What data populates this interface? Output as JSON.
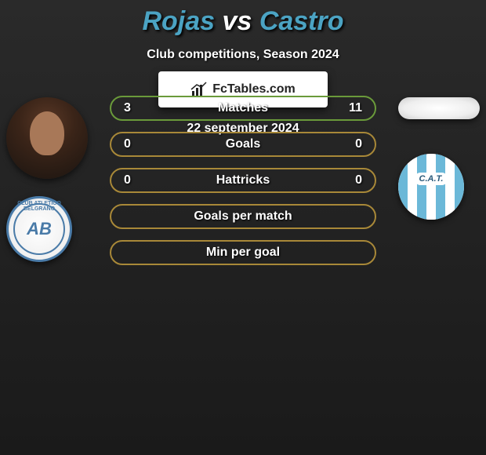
{
  "header": {
    "player1": "Rojas",
    "vs": "vs",
    "player2": "Castro",
    "subtitle": "Club competitions, Season 2024"
  },
  "stats": {
    "rows": [
      {
        "label": "Matches",
        "left": "3",
        "right": "11",
        "border_color": "#6a9a3a"
      },
      {
        "label": "Goals",
        "left": "0",
        "right": "0",
        "border_color": "#a88838"
      },
      {
        "label": "Hattricks",
        "left": "0",
        "right": "0",
        "border_color": "#a88838"
      },
      {
        "label": "Goals per match",
        "left": "",
        "right": "",
        "border_color": "#a88838"
      },
      {
        "label": "Min per goal",
        "left": "",
        "right": "",
        "border_color": "#a88838"
      }
    ]
  },
  "players": {
    "left_club_ring": "CLUB ATLETICO BELGRANO",
    "left_club_short": "AB",
    "right_club_short": "C.A.T."
  },
  "footer": {
    "brand": "FcTables.com",
    "date": "22 september 2024"
  },
  "colors": {
    "title_accent": "#4ba3c3",
    "bg_top": "#2a2a2a",
    "bg_bottom": "#1a1a1a",
    "row_green": "#6a9a3a",
    "row_gold": "#a88838",
    "club_left_blue": "#4a7ba8",
    "club_right_stripe": "#6bb8d8"
  }
}
